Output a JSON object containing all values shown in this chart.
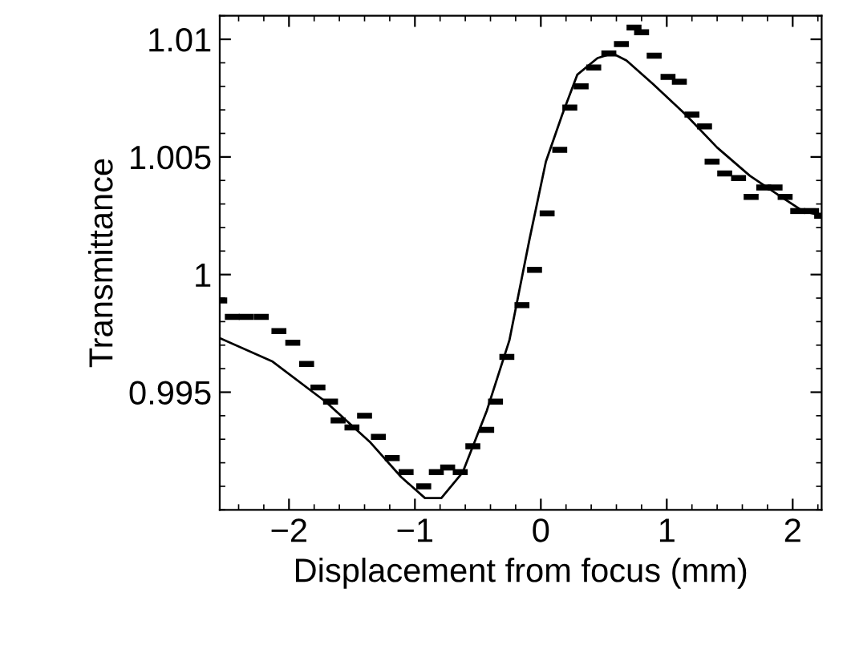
{
  "chart_data": {
    "type": "scatter",
    "xlabel": "Displacement from focus (mm)",
    "ylabel": "Transmittance",
    "xlim": [
      -2.55,
      2.23
    ],
    "ylim": [
      0.99,
      1.011
    ],
    "xticks": [
      {
        "value": -2,
        "label": "−2"
      },
      {
        "value": -1,
        "label": "−1"
      },
      0,
      1,
      2
    ],
    "yticks": [
      0.995,
      {
        "value": 1,
        "label": "1"
      },
      1.005,
      1.01
    ],
    "grid": false,
    "legend": false,
    "series": [
      {
        "color": "#000000",
        "x": [
          -2.55,
          -2.45,
          -2.34,
          -2.22,
          -2.08,
          -1.97,
          -1.86,
          -1.77,
          -1.67,
          -1.61,
          -1.5,
          -1.4,
          -1.29,
          -1.18,
          -1.07,
          -0.93,
          -0.83,
          -0.74,
          -0.64,
          -0.54,
          -0.43,
          -0.36,
          -0.27,
          -0.15,
          -0.05,
          0.05,
          0.15,
          0.23,
          0.32,
          0.42,
          0.54,
          0.64,
          0.74,
          0.8,
          0.9,
          1.01,
          1.1,
          1.2,
          1.3,
          1.36,
          1.46,
          1.57,
          1.67,
          1.77,
          1.86,
          1.94,
          2.04,
          2.15,
          2.23
        ],
        "values": [
          0.9989,
          0.9982,
          0.9982,
          0.9982,
          0.9976,
          0.9971,
          0.9962,
          0.9952,
          0.9946,
          0.9938,
          0.9935,
          0.994,
          0.9931,
          0.9922,
          0.9916,
          0.991,
          0.9916,
          0.9918,
          0.9916,
          0.9927,
          0.9934,
          0.9946,
          0.9965,
          0.9987,
          1.0002,
          1.0026,
          1.0053,
          1.0071,
          1.008,
          1.0088,
          1.0094,
          1.0098,
          1.0105,
          1.0103,
          1.0093,
          1.0084,
          1.0082,
          1.0068,
          1.0063,
          1.0048,
          1.0043,
          1.0041,
          1.0033,
          1.0037,
          1.0037,
          1.0033,
          1.0027,
          1.0027,
          1.0025
        ]
      },
      {
        "type": "line",
        "color": "#000000",
        "line_style": "solid",
        "x": [
          -2.55,
          -2.13,
          -1.71,
          -1.36,
          -1.11,
          -0.92,
          -0.79,
          -0.62,
          -0.43,
          -0.25,
          -0.09,
          0.04,
          0.17,
          0.29,
          0.45,
          0.57,
          0.68,
          0.89,
          1.15,
          1.4,
          1.66,
          1.91,
          2.08,
          2.23
        ],
        "values": [
          0.9973,
          0.9963,
          0.9946,
          0.9929,
          0.9914,
          0.9905,
          0.9905,
          0.9916,
          0.9942,
          0.9972,
          1.0015,
          1.0048,
          1.0068,
          1.0085,
          1.0092,
          1.0094,
          1.0091,
          1.0081,
          1.0068,
          1.0054,
          1.0042,
          1.0033,
          1.0027,
          1.0025
        ]
      }
    ]
  }
}
